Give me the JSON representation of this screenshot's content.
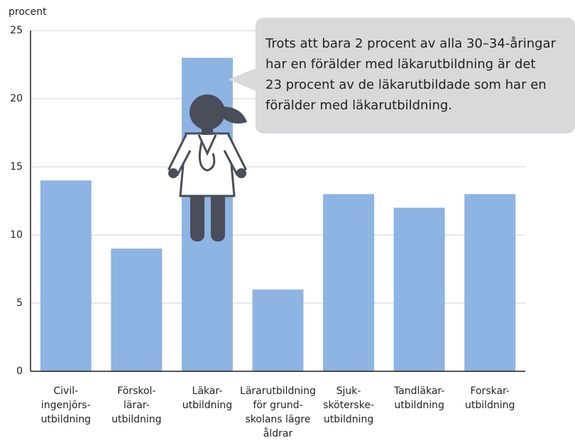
{
  "chart_data": {
    "type": "bar",
    "y_label": "procent",
    "categories": [
      [
        "Civil-",
        "ingenjörs-",
        "utbildning"
      ],
      [
        "Förskol-",
        "lärar-",
        "utbildning"
      ],
      [
        "Läkar-",
        "utbildning"
      ],
      [
        "Lärarutbildning",
        "för grund-",
        "skolans lägre",
        "åldrar"
      ],
      [
        "Sjuk-",
        "sköterske-",
        "utbildning"
      ],
      [
        "Tandläkar-",
        "utbildning"
      ],
      [
        "Forskar-",
        "utbildning"
      ]
    ],
    "values": [
      14,
      9,
      23,
      6,
      13,
      12,
      13
    ],
    "color": "#8db4e2",
    "ylim": [
      0,
      25
    ],
    "yticks": [
      0,
      5,
      10,
      15,
      20,
      25
    ],
    "grid": true,
    "annotation": [
      "Trots att bara 2 procent av alla 30–34-åringar",
      "har en förälder med läkarutbildning är det",
      "23 procent av de läkarutbildade som har en",
      "förälder med läkarutbildning."
    ]
  }
}
